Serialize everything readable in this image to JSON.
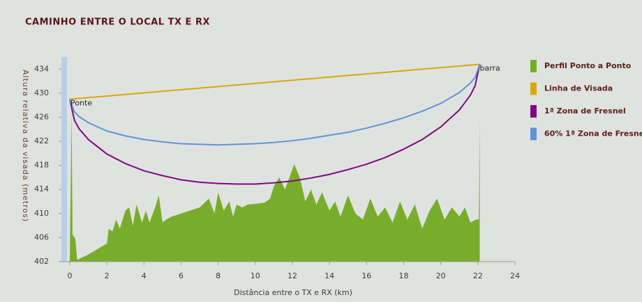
{
  "chart_data": {
    "type": "line",
    "title": "CAMINHO ENTRE O LOCAL TX E RX",
    "x_label": "Distância entre o TX e RX (km)",
    "y_label": "Altura relativa da visada (metros)",
    "xlim": [
      -0.45,
      24
    ],
    "xticks": [
      0,
      2,
      4,
      6,
      8,
      10,
      12,
      14,
      16,
      18,
      20,
      22,
      24
    ],
    "ylim": [
      402,
      436
    ],
    "yticks": [
      402,
      406,
      410,
      414,
      418,
      422,
      426,
      430,
      434
    ],
    "grid": false,
    "legend": "right",
    "annotations": [
      {
        "text": "Ponte",
        "series": 1,
        "point": 0
      },
      {
        "text": "barra",
        "series": 1,
        "point": 1
      }
    ],
    "series": [
      {
        "name": "Perfil Ponto a Ponto",
        "color": "#78ad2c",
        "kind": "area",
        "x": [
          0,
          0.1,
          0.15,
          0.3,
          0.4,
          1.0,
          2.0,
          2.1,
          2.3,
          2.5,
          2.7,
          3.0,
          3.2,
          3.4,
          3.6,
          3.9,
          4.1,
          4.3,
          4.6,
          4.8,
          5.0,
          5.2,
          5.5,
          6.0,
          6.5,
          7.0,
          7.5,
          7.8,
          8.0,
          8.3,
          8.6,
          8.8,
          9.0,
          9.3,
          9.6,
          10.0,
          10.5,
          10.8,
          11.0,
          11.3,
          11.6,
          11.9,
          12.1,
          12.4,
          12.7,
          13.0,
          13.3,
          13.6,
          14.0,
          14.3,
          14.6,
          15.0,
          15.4,
          15.8,
          16.2,
          16.6,
          17.0,
          17.4,
          17.8,
          18.2,
          18.6,
          19.0,
          19.4,
          19.8,
          20.2,
          20.6,
          21.0,
          21.3,
          21.6,
          21.9,
          22.05,
          22.1
        ],
        "values": [
          402,
          427,
          406.5,
          405.8,
          402.3,
          403.2,
          405,
          407.5,
          407,
          409,
          407.5,
          410.5,
          411,
          408,
          411.5,
          408.5,
          410.5,
          408.5,
          411,
          413,
          408.5,
          409,
          409.5,
          410,
          410.5,
          411,
          412.5,
          410,
          413.5,
          410.5,
          412,
          409.5,
          411.5,
          411,
          411.5,
          411.6,
          411.8,
          412.5,
          414.5,
          416,
          414,
          416.5,
          418.2,
          416,
          412,
          414,
          411.5,
          413.5,
          410.5,
          412,
          409.5,
          413,
          410,
          409,
          412.5,
          409.5,
          411,
          408.5,
          412,
          409,
          411.5,
          407.5,
          410.5,
          412.5,
          409,
          411,
          409.5,
          411,
          408.5,
          409,
          409,
          426
        ]
      },
      {
        "name": "Linha de Visada",
        "color": "#d8a80a",
        "kind": "line",
        "x": [
          0,
          22.1
        ],
        "values": [
          429,
          434.8
        ]
      },
      {
        "name": "1ª Zona de Fresnel",
        "color": "#7d0a7d",
        "kind": "line",
        "x": [
          0,
          0.25,
          0.5,
          1,
          2,
          3,
          4,
          5,
          6,
          7,
          8,
          9,
          10,
          11,
          12,
          13,
          14,
          15,
          16,
          17,
          18,
          19,
          20,
          21,
          21.6,
          21.85,
          22.1
        ],
        "values": [
          429,
          425.5,
          424.1,
          422.3,
          419.9,
          418.3,
          417.1,
          416.3,
          415.6,
          415.2,
          415.0,
          414.9,
          414.9,
          415.1,
          415.4,
          415.9,
          416.5,
          417.3,
          418.2,
          419.3,
          420.7,
          422.3,
          424.4,
          427.2,
          429.7,
          431.2,
          434.8
        ]
      },
      {
        "name": "60% 1ª Zona de Fresnel",
        "color": "#5e94d8",
        "kind": "line",
        "x": [
          0,
          0.25,
          0.5,
          1,
          2,
          3,
          4,
          5,
          6,
          7,
          8,
          9,
          10,
          11,
          12,
          13,
          14,
          15,
          16,
          17,
          18,
          19,
          20,
          21,
          21.6,
          21.85,
          22.1
        ],
        "values": [
          429,
          426.9,
          426.1,
          425.1,
          423.7,
          422.9,
          422.3,
          421.9,
          421.6,
          421.5,
          421.4,
          421.5,
          421.6,
          421.8,
          422.1,
          422.5,
          423.0,
          423.5,
          424.2,
          425.0,
          425.9,
          427.0,
          428.3,
          430.1,
          431.7,
          432.6,
          434.8
        ]
      }
    ]
  }
}
